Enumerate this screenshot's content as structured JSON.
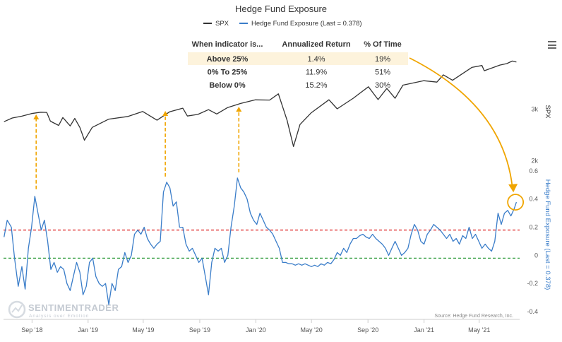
{
  "chart_data": {
    "type": "line",
    "title": "Hedge Fund Exposure",
    "series": [
      {
        "name": "SPX",
        "color": "#333333",
        "points": [
          [
            "2018-07-02",
            2720
          ],
          [
            "2018-07-20",
            2800
          ],
          [
            "2018-08-10",
            2840
          ],
          [
            "2018-08-31",
            2900
          ],
          [
            "2018-09-20",
            2930
          ],
          [
            "2018-10-03",
            2925
          ],
          [
            "2018-10-11",
            2730
          ],
          [
            "2018-10-29",
            2640
          ],
          [
            "2018-11-07",
            2810
          ],
          [
            "2018-11-23",
            2630
          ],
          [
            "2018-12-03",
            2790
          ],
          [
            "2018-12-14",
            2600
          ],
          [
            "2018-12-24",
            2350
          ],
          [
            "2019-01-10",
            2600
          ],
          [
            "2019-02-15",
            2775
          ],
          [
            "2019-03-29",
            2834
          ],
          [
            "2019-04-30",
            2946
          ],
          [
            "2019-05-31",
            2752
          ],
          [
            "2019-06-28",
            2941
          ],
          [
            "2019-07-26",
            3025
          ],
          [
            "2019-08-05",
            2844
          ],
          [
            "2019-08-28",
            2880
          ],
          [
            "2019-09-20",
            2990
          ],
          [
            "2019-10-08",
            2890
          ],
          [
            "2019-10-31",
            3037
          ],
          [
            "2019-11-29",
            3140
          ],
          [
            "2019-12-31",
            3230
          ],
          [
            "2020-01-31",
            3225
          ],
          [
            "2020-02-19",
            3386
          ],
          [
            "2020-03-09",
            2750
          ],
          [
            "2020-03-23",
            2237
          ],
          [
            "2020-04-06",
            2660
          ],
          [
            "2020-04-30",
            2912
          ],
          [
            "2020-06-08",
            3232
          ],
          [
            "2020-06-26",
            3010
          ],
          [
            "2020-07-31",
            3271
          ],
          [
            "2020-09-02",
            3580
          ],
          [
            "2020-09-23",
            3237
          ],
          [
            "2020-10-12",
            3534
          ],
          [
            "2020-10-30",
            3270
          ],
          [
            "2020-11-16",
            3627
          ],
          [
            "2020-12-31",
            3756
          ],
          [
            "2021-01-29",
            3714
          ],
          [
            "2021-02-12",
            3934
          ],
          [
            "2021-03-04",
            3768
          ],
          [
            "2021-04-15",
            4170
          ],
          [
            "2021-05-07",
            4232
          ],
          [
            "2021-05-12",
            4063
          ],
          [
            "2021-06-15",
            4246
          ],
          [
            "2021-06-30",
            4297
          ],
          [
            "2021-07-12",
            4384
          ],
          [
            "2021-07-21",
            4350
          ]
        ]
      },
      {
        "name": "Hedge Fund Exposure (Last = 0.378)",
        "color": "#3a7dc9",
        "points": [
          [
            "2018-07-02",
            0.13
          ],
          [
            "2018-07-09",
            0.25
          ],
          [
            "2018-07-18",
            0.2
          ],
          [
            "2018-07-25",
            -0.02
          ],
          [
            "2018-08-02",
            -0.22
          ],
          [
            "2018-08-10",
            -0.08
          ],
          [
            "2018-08-17",
            -0.24
          ],
          [
            "2018-08-24",
            0.05
          ],
          [
            "2018-08-31",
            0.2
          ],
          [
            "2018-09-07",
            0.42
          ],
          [
            "2018-09-14",
            0.3
          ],
          [
            "2018-09-21",
            0.18
          ],
          [
            "2018-09-28",
            0.25
          ],
          [
            "2018-10-05",
            0.1
          ],
          [
            "2018-10-12",
            -0.1
          ],
          [
            "2018-10-19",
            -0.05
          ],
          [
            "2018-10-26",
            -0.12
          ],
          [
            "2018-11-02",
            -0.08
          ],
          [
            "2018-11-09",
            -0.1
          ],
          [
            "2018-11-16",
            -0.2
          ],
          [
            "2018-11-23",
            -0.25
          ],
          [
            "2018-11-30",
            -0.15
          ],
          [
            "2018-12-07",
            -0.05
          ],
          [
            "2018-12-14",
            -0.12
          ],
          [
            "2018-12-21",
            -0.28
          ],
          [
            "2018-12-28",
            -0.22
          ],
          [
            "2019-01-04",
            -0.05
          ],
          [
            "2019-01-11",
            -0.02
          ],
          [
            "2019-01-18",
            -0.15
          ],
          [
            "2019-01-25",
            -0.2
          ],
          [
            "2019-02-01",
            -0.22
          ],
          [
            "2019-02-08",
            -0.2
          ],
          [
            "2019-02-15",
            -0.35
          ],
          [
            "2019-02-22",
            -0.2
          ],
          [
            "2019-03-01",
            -0.25
          ],
          [
            "2019-03-08",
            -0.1
          ],
          [
            "2019-03-15",
            -0.08
          ],
          [
            "2019-03-22",
            0.02
          ],
          [
            "2019-03-29",
            -0.05
          ],
          [
            "2019-04-05",
            0.0
          ],
          [
            "2019-04-12",
            0.15
          ],
          [
            "2019-04-19",
            0.18
          ],
          [
            "2019-04-26",
            0.15
          ],
          [
            "2019-05-03",
            0.2
          ],
          [
            "2019-05-10",
            0.12
          ],
          [
            "2019-05-17",
            0.08
          ],
          [
            "2019-05-24",
            0.05
          ],
          [
            "2019-05-31",
            0.08
          ],
          [
            "2019-06-07",
            0.1
          ],
          [
            "2019-06-14",
            0.45
          ],
          [
            "2019-06-21",
            0.52
          ],
          [
            "2019-06-28",
            0.48
          ],
          [
            "2019-07-05",
            0.35
          ],
          [
            "2019-07-12",
            0.38
          ],
          [
            "2019-07-19",
            0.2
          ],
          [
            "2019-07-26",
            0.2
          ],
          [
            "2019-08-02",
            0.08
          ],
          [
            "2019-08-09",
            0.03
          ],
          [
            "2019-08-16",
            0.05
          ],
          [
            "2019-08-23",
            0.0
          ],
          [
            "2019-08-30",
            -0.05
          ],
          [
            "2019-09-06",
            -0.02
          ],
          [
            "2019-09-13",
            -0.15
          ],
          [
            "2019-09-20",
            -0.28
          ],
          [
            "2019-09-27",
            -0.05
          ],
          [
            "2019-10-04",
            0.05
          ],
          [
            "2019-10-11",
            0.03
          ],
          [
            "2019-10-18",
            0.05
          ],
          [
            "2019-10-25",
            -0.05
          ],
          [
            "2019-11-01",
            0.0
          ],
          [
            "2019-11-08",
            0.2
          ],
          [
            "2019-11-15",
            0.35
          ],
          [
            "2019-11-22",
            0.55
          ],
          [
            "2019-11-29",
            0.48
          ],
          [
            "2019-12-06",
            0.45
          ],
          [
            "2019-12-13",
            0.4
          ],
          [
            "2019-12-20",
            0.3
          ],
          [
            "2019-12-27",
            0.25
          ],
          [
            "2020-01-03",
            0.22
          ],
          [
            "2020-01-10",
            0.3
          ],
          [
            "2020-01-17",
            0.25
          ],
          [
            "2020-01-24",
            0.2
          ],
          [
            "2020-01-31",
            0.18
          ],
          [
            "2020-02-07",
            0.15
          ],
          [
            "2020-02-14",
            0.1
          ],
          [
            "2020-02-21",
            0.05
          ],
          [
            "2020-02-28",
            -0.05
          ],
          [
            "2020-03-06",
            -0.05
          ],
          [
            "2020-03-13",
            -0.06
          ],
          [
            "2020-03-20",
            -0.06
          ],
          [
            "2020-03-27",
            -0.07
          ],
          [
            "2020-04-03",
            -0.06
          ],
          [
            "2020-04-10",
            -0.07
          ],
          [
            "2020-04-17",
            -0.06
          ],
          [
            "2020-04-24",
            -0.07
          ],
          [
            "2020-05-01",
            -0.08
          ],
          [
            "2020-05-08",
            -0.07
          ],
          [
            "2020-05-15",
            -0.08
          ],
          [
            "2020-05-22",
            -0.06
          ],
          [
            "2020-05-29",
            -0.07
          ],
          [
            "2020-06-05",
            -0.05
          ],
          [
            "2020-06-12",
            -0.06
          ],
          [
            "2020-06-19",
            -0.03
          ],
          [
            "2020-06-26",
            0.02
          ],
          [
            "2020-07-03",
            0.0
          ],
          [
            "2020-07-10",
            0.05
          ],
          [
            "2020-07-17",
            0.02
          ],
          [
            "2020-07-24",
            0.08
          ],
          [
            "2020-07-31",
            0.12
          ],
          [
            "2020-08-07",
            0.12
          ],
          [
            "2020-08-14",
            0.14
          ],
          [
            "2020-08-21",
            0.15
          ],
          [
            "2020-08-28",
            0.13
          ],
          [
            "2020-09-04",
            0.12
          ],
          [
            "2020-09-11",
            0.15
          ],
          [
            "2020-09-18",
            0.12
          ],
          [
            "2020-09-25",
            0.1
          ],
          [
            "2020-10-02",
            0.08
          ],
          [
            "2020-10-09",
            0.05
          ],
          [
            "2020-10-16",
            0.0
          ],
          [
            "2020-10-23",
            0.05
          ],
          [
            "2020-10-30",
            0.1
          ],
          [
            "2020-11-06",
            0.05
          ],
          [
            "2020-11-13",
            0.0
          ],
          [
            "2020-11-20",
            0.02
          ],
          [
            "2020-11-27",
            0.05
          ],
          [
            "2020-12-04",
            0.15
          ],
          [
            "2020-12-11",
            0.22
          ],
          [
            "2020-12-18",
            0.18
          ],
          [
            "2020-12-25",
            0.1
          ],
          [
            "2021-01-01",
            0.08
          ],
          [
            "2021-01-08",
            0.15
          ],
          [
            "2021-01-15",
            0.18
          ],
          [
            "2021-01-22",
            0.22
          ],
          [
            "2021-01-29",
            0.2
          ],
          [
            "2021-02-05",
            0.18
          ],
          [
            "2021-02-12",
            0.15
          ],
          [
            "2021-02-19",
            0.12
          ],
          [
            "2021-02-26",
            0.15
          ],
          [
            "2021-03-05",
            0.1
          ],
          [
            "2021-03-12",
            0.12
          ],
          [
            "2021-03-19",
            0.08
          ],
          [
            "2021-03-26",
            0.14
          ],
          [
            "2021-04-02",
            0.12
          ],
          [
            "2021-04-09",
            0.2
          ],
          [
            "2021-04-16",
            0.12
          ],
          [
            "2021-04-23",
            0.15
          ],
          [
            "2021-04-30",
            0.1
          ],
          [
            "2021-05-07",
            0.05
          ],
          [
            "2021-05-14",
            0.08
          ],
          [
            "2021-05-21",
            0.05
          ],
          [
            "2021-05-28",
            0.03
          ],
          [
            "2021-06-04",
            0.1
          ],
          [
            "2021-06-11",
            0.3
          ],
          [
            "2021-06-18",
            0.22
          ],
          [
            "2021-06-25",
            0.3
          ],
          [
            "2021-07-02",
            0.32
          ],
          [
            "2021-07-09",
            0.28
          ],
          [
            "2021-07-16",
            0.33
          ],
          [
            "2021-07-21",
            0.378
          ]
        ]
      }
    ],
    "x_axis": {
      "type": "date",
      "range": [
        "2018-07-01",
        "2021-07-28"
      ],
      "ticks": [
        {
          "date": "2018-09-01",
          "label": "Sep '18"
        },
        {
          "date": "2019-01-01",
          "label": "Jan '19"
        },
        {
          "date": "2019-05-01",
          "label": "May '19"
        },
        {
          "date": "2019-09-01",
          "label": "Sep '19"
        },
        {
          "date": "2020-01-01",
          "label": "Jan '20"
        },
        {
          "date": "2020-05-01",
          "label": "May '20"
        },
        {
          "date": "2020-09-01",
          "label": "Sep '20"
        },
        {
          "date": "2021-01-01",
          "label": "Jan '21"
        },
        {
          "date": "2021-05-01",
          "label": "May '21"
        }
      ]
    },
    "y_axis_spx": {
      "label": "SPX",
      "scale": "log",
      "range": [
        1650,
        6000
      ],
      "ticks": [
        {
          "value": 2000,
          "label": "2k"
        },
        {
          "value": 3000,
          "label": "3k"
        }
      ]
    },
    "y_axis_exposure": {
      "label": "Hedge Fund Exposure (Last = 0.378)",
      "range": [
        -0.46,
        0.7
      ],
      "ticks": [
        {
          "value": 0.6,
          "label": "0.6"
        },
        {
          "value": 0.4,
          "label": "0.4"
        },
        {
          "value": 0.2,
          "label": "0.2"
        },
        {
          "value": 0,
          "label": "0"
        },
        {
          "value": -0.2,
          "label": "-0.2"
        },
        {
          "value": -0.4,
          "label": "-0.4"
        }
      ]
    },
    "reference_lines": [
      {
        "value": 0.18,
        "color": "#e03030"
      },
      {
        "value": -0.02,
        "color": "#2e9a3a"
      }
    ],
    "table": {
      "headers": [
        "When indicator is...",
        "Annualized Return",
        "% Of Time"
      ],
      "rows": [
        {
          "label": "Above 25%",
          "return": "1.4%",
          "time": "19%",
          "highlight": true
        },
        {
          "label": "0% To 25%",
          "return": "11.9%",
          "time": "51%",
          "highlight": false
        },
        {
          "label": "Below 0%",
          "return": "15.2%",
          "time": "30%",
          "highlight": false
        }
      ]
    },
    "annotations": {
      "peak_arrows": [
        {
          "date": "2018-09-10",
          "from": 0.47,
          "to_spx": 2880
        },
        {
          "date": "2019-06-18",
          "from": 0.56,
          "to_spx": 2960
        },
        {
          "date": "2019-11-25",
          "from": 0.59,
          "to_spx": 3060
        }
      ],
      "highlight_circle": {
        "date": "2021-07-19",
        "value": 0.378
      },
      "arrow_color": "#f0a500"
    },
    "source": "Source: Hedge Fund Research, Inc.",
    "watermark": {
      "name": "SENTIMENTRADER",
      "tagline": "Analysis over Emotion"
    },
    "legend_position": "top-center",
    "grid": false
  }
}
